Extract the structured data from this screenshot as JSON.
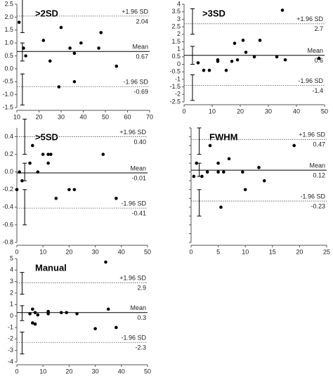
{
  "chart_data": [
    {
      "type": "scatter",
      "title": ">2SD",
      "xlim": [
        10,
        70
      ],
      "xticks": [
        10,
        20,
        30,
        40,
        50,
        60,
        70
      ],
      "ylim": [
        -1.5,
        2.5
      ],
      "yticks": [
        {
          "value": -1.5,
          "label": "-1.5"
        },
        {
          "value": -1,
          "label": "-1.0"
        },
        {
          "value": -0.5,
          "label": "-0.5"
        },
        {
          "value": 0,
          "label": "0.0"
        },
        {
          "value": 0.5,
          "label": "0.5"
        },
        {
          "value": 1,
          "label": "1.0"
        },
        {
          "value": 1.5,
          "label": "1.5"
        },
        {
          "value": 2,
          "label": "2.0"
        },
        {
          "value": 2.5,
          "label": "2.5"
        }
      ],
      "x": [
        11,
        13,
        14,
        22,
        25,
        29,
        30,
        34,
        36,
        36,
        39,
        47,
        48,
        55
      ],
      "values": [
        1.8,
        0.8,
        0.5,
        1.1,
        0.3,
        -0.7,
        1.6,
        0.8,
        0.6,
        -0.5,
        1.0,
        0.8,
        1.4,
        0.1
      ],
      "ci_x": 12.5,
      "lines": [
        {
          "label": "+1.96 SD",
          "value": 2.04,
          "ci": [
            1.4,
            2.7
          ]
        },
        {
          "label": "Mean",
          "value": 0.67,
          "ci": [
            0.3,
            1.0
          ]
        },
        {
          "label": "-1.96 SD",
          "value": -0.69,
          "ci": [
            -1.4,
            -0.2
          ]
        }
      ]
    },
    {
      "type": "scatter",
      "title": ">3SD",
      "xlim": [
        0,
        50
      ],
      "xticks": [
        0,
        10,
        20,
        30,
        40,
        50
      ],
      "ylim": [
        -2.5,
        4
      ],
      "yticks": [
        -2.5,
        -2,
        -1.5,
        -1,
        -0.5,
        0,
        0.5,
        1,
        1.5,
        2,
        2.5,
        3,
        3.5,
        4
      ],
      "x": [
        5,
        7,
        9,
        12,
        12,
        15,
        17,
        18,
        19,
        21,
        22,
        25,
        27,
        33,
        35,
        36,
        48
      ],
      "values": [
        0.1,
        -0.4,
        -0.4,
        0.3,
        0.2,
        -0.4,
        0.2,
        1.4,
        0.3,
        1.6,
        0.8,
        0.5,
        1.6,
        0.5,
        3.6,
        0.3,
        0.4
      ],
      "ci_x": 3,
      "lines": [
        {
          "label": "+1.96 SD",
          "value": 2.7,
          "ci": [
            2.0,
            3.7
          ]
        },
        {
          "label": "Mean",
          "value": 0.6,
          "ci": [
            0.0,
            1.2
          ]
        },
        {
          "label": "-1.96 SD",
          "value": -1.4,
          "ci": [
            -2.4,
            -0.7
          ]
        }
      ]
    },
    {
      "type": "scatter",
      "title": ">5SD",
      "xlim": [
        0,
        50
      ],
      "xticks": [
        0,
        10,
        20,
        30,
        40,
        50
      ],
      "ylim": [
        -0.8,
        0.5
      ],
      "yticks": [
        -0.8,
        -0.6,
        -0.4,
        -0.2,
        {
          "value": 0,
          "label": "0.0"
        },
        0.2,
        0.4
      ],
      "x": [
        0,
        1,
        2,
        5,
        6,
        8,
        10,
        12,
        12,
        13,
        15,
        20,
        22,
        33,
        38
      ],
      "values": [
        -0.2,
        0.0,
        -0.1,
        0.1,
        0.3,
        0.0,
        0.2,
        0.1,
        0.2,
        0.2,
        -0.3,
        -0.2,
        -0.2,
        0.2,
        -0.3
      ],
      "ci_x": 3,
      "lines": [
        {
          "label": "+1.96 SD",
          "value": 0.4,
          "value_label": "0.40",
          "ci": [
            0.2,
            0.6
          ]
        },
        {
          "label": "Mean",
          "value": -0.01,
          "ci": [
            -0.1,
            0.1
          ]
        },
        {
          "label": "-1.96 SD",
          "value": -0.41,
          "ci": [
            -0.6,
            -0.2
          ]
        }
      ]
    },
    {
      "type": "scatter",
      "title": "FWHM",
      "xlim": [
        0,
        25
      ],
      "xticks": [
        0,
        5,
        10,
        15,
        20,
        25
      ],
      "ylim": [
        -0.7,
        0.6
      ],
      "yticks": [
        -0.7,
        -0.6,
        -0.5,
        -0.4,
        -0.3,
        -0.2,
        -0.1,
        0,
        0.1,
        0.2,
        0.3,
        0.4,
        0.5,
        0.6
      ],
      "ytick_labels": false,
      "x": [
        0.5,
        1,
        2,
        3,
        3.5,
        5,
        5,
        5.5,
        6,
        7,
        9.5,
        10,
        12.5,
        13.5,
        19
      ],
      "values": [
        0.05,
        0.2,
        0.05,
        0.1,
        0.4,
        0.2,
        0.1,
        -0.3,
        0.1,
        0.25,
        0.1,
        -0.1,
        0.15,
        0,
        0.4
      ],
      "ci_x": 1.5,
      "lines": [
        {
          "label": "+1.96 SD",
          "value": 0.47,
          "ci": [
            0.3,
            0.6
          ]
        },
        {
          "label": "Mean",
          "value": 0.12,
          "ci": [
            0.05,
            0.2
          ]
        },
        {
          "label": "-1.96 SD",
          "value": -0.23,
          "ci": [
            -0.4,
            -0.1
          ]
        }
      ]
    },
    {
      "type": "scatter",
      "title": "Manual",
      "xlim": [
        0,
        50
      ],
      "xticks": [
        0,
        10,
        20,
        30,
        40,
        50
      ],
      "ylim": [
        -4,
        5
      ],
      "yticks": [
        -4,
        -3,
        -2,
        -1,
        0,
        1,
        2,
        3,
        4,
        5
      ],
      "x": [
        5,
        6,
        6,
        7,
        7,
        8,
        12,
        12,
        17,
        19,
        23,
        30,
        34,
        35,
        38
      ],
      "values": [
        0.2,
        0.6,
        -0.6,
        -0.7,
        0.3,
        0.1,
        0.4,
        0.2,
        0.3,
        0.3,
        0.2,
        -1.1,
        4.7,
        0.6,
        -1.0
      ],
      "ci_x": 2,
      "lines": [
        {
          "label": "+1.96 SD",
          "value": 2.9,
          "ci": [
            1.9,
            3.8
          ]
        },
        {
          "label": "Mean",
          "value": 0.3,
          "ci": [
            -0.4,
            0.9
          ]
        },
        {
          "label": "-1.96 SD",
          "value": -2.3,
          "ci": [
            -3.3,
            -1.4
          ]
        }
      ]
    }
  ]
}
